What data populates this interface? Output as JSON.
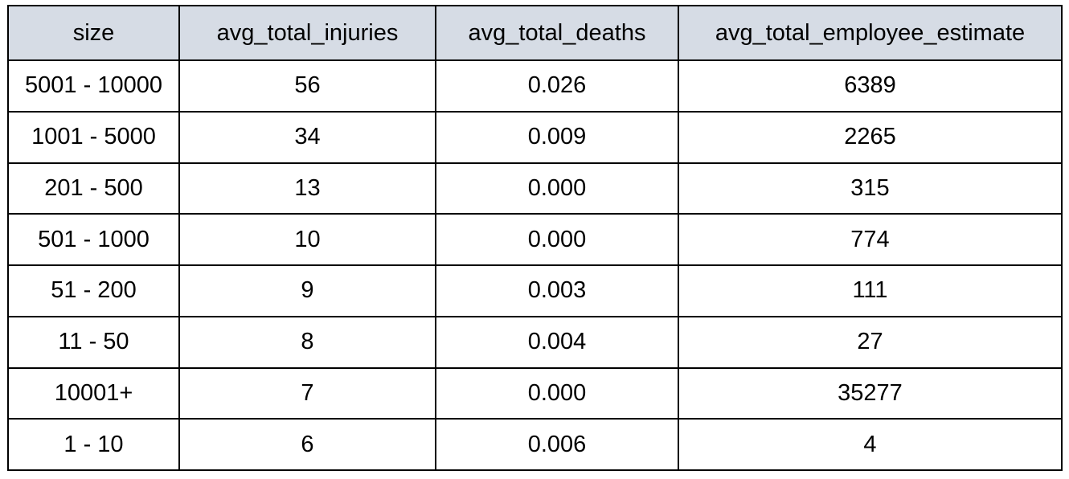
{
  "table": {
    "columns": [
      "size",
      "avg_total_injuries",
      "avg_total_deaths",
      "avg_total_employee_estimate"
    ],
    "rows": [
      [
        "5001 - 10000",
        "56",
        "0.026",
        "6389"
      ],
      [
        "1001 - 5000",
        "34",
        "0.009",
        "2265"
      ],
      [
        "201 - 500",
        "13",
        "0.000",
        "315"
      ],
      [
        "501 - 1000",
        "10",
        "0.000",
        "774"
      ],
      [
        "51 - 200",
        "9",
        "0.003",
        "111"
      ],
      [
        "11 - 50",
        "8",
        "0.004",
        "27"
      ],
      [
        "10001+",
        "7",
        "0.000",
        "35277"
      ],
      [
        "1 - 10",
        "6",
        "0.006",
        "4"
      ]
    ]
  }
}
